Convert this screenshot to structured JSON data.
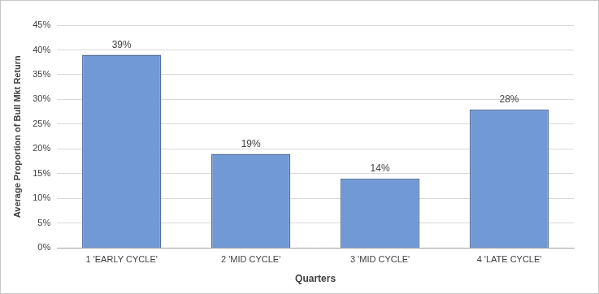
{
  "chart_data": {
    "type": "bar",
    "x_label": "Quarters",
    "y_label": "Average Proportion of Bull Mkt Return",
    "categories": [
      "1 'EARLY CYCLE'",
      "2 'MID CYCLE'",
      "3 'MID CYCLE'",
      "4 'LATE CYCLE'"
    ],
    "values": [
      39,
      19,
      14,
      28
    ],
    "value_labels": [
      "39%",
      "19%",
      "14%",
      "28%"
    ],
    "color": "#7199d6",
    "ylim": [
      0,
      45
    ],
    "yticks": [
      {
        "value": 0,
        "label": "0%"
      },
      {
        "value": 5,
        "label": "5%"
      },
      {
        "value": 10,
        "label": "10%"
      },
      {
        "value": 15,
        "label": "15%"
      },
      {
        "value": 20,
        "label": "20%"
      },
      {
        "value": 25,
        "label": "25%"
      },
      {
        "value": 30,
        "label": "30%"
      },
      {
        "value": 35,
        "label": "35%"
      },
      {
        "value": 40,
        "label": "40%"
      },
      {
        "value": 45,
        "label": "45%"
      }
    ],
    "grid": true,
    "data_labels": true
  }
}
